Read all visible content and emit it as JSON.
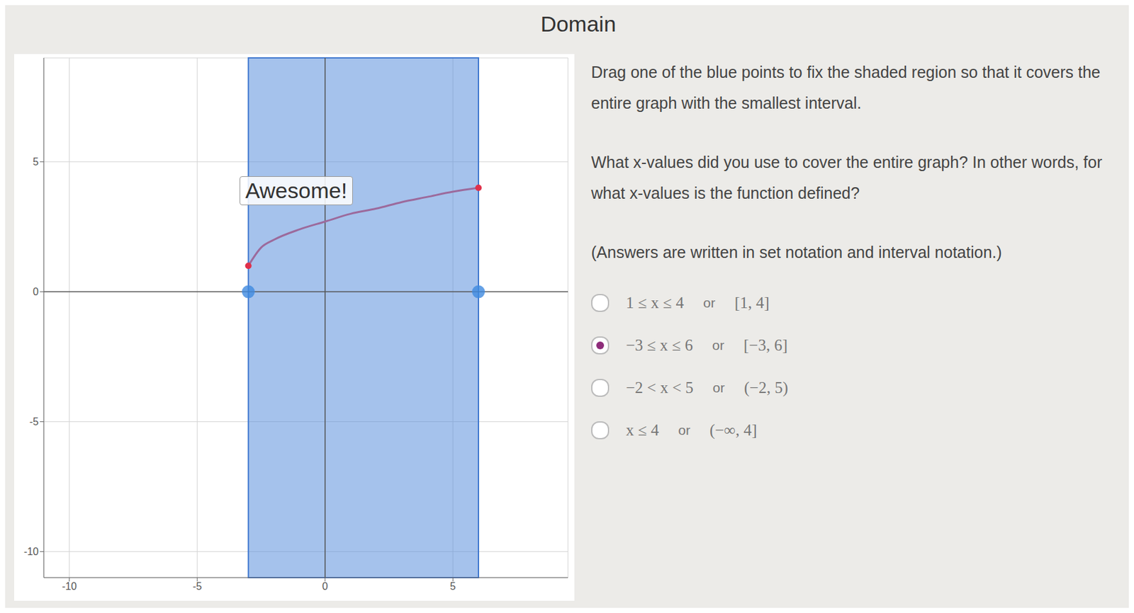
{
  "title": "Domain",
  "instructions": "Drag one of the blue points to fix the shaded region so that it covers the entire graph with the smallest interval.",
  "question": "What x-values did you use to cover the entire graph? In other words, for what x-values is the function defined?",
  "note": "(Answers are written in set notation and interval notation.)",
  "connector": "or",
  "options": [
    {
      "set": "1 ≤ x ≤ 4",
      "interval": "[1, 4]",
      "selected": false
    },
    {
      "set": "−3 ≤ x ≤ 6",
      "interval": "[−3, 6]",
      "selected": true
    },
    {
      "set": "−2 < x < 5",
      "interval": "(−2, 5)",
      "selected": false
    },
    {
      "set": "x ≤ 4",
      "interval": "(−∞, 4]",
      "selected": false
    }
  ],
  "chart_data": {
    "type": "line",
    "x": [
      -3,
      -2.5,
      -2,
      -1,
      0,
      1,
      2,
      3,
      4,
      5,
      6
    ],
    "values": [
      1,
      1.7,
      2,
      2.4,
      2.7,
      3,
      3.2,
      3.45,
      3.65,
      3.85,
      4
    ],
    "color": "#9c6a9c",
    "xlim": [
      -11,
      9.5
    ],
    "ylim": [
      -11,
      9
    ],
    "xticks": [
      -10,
      -5,
      0,
      5
    ],
    "yticks": [
      -10,
      -5,
      0,
      5
    ],
    "grid": true,
    "shaded": [
      -3,
      6
    ],
    "annotation": "Awesome!"
  }
}
